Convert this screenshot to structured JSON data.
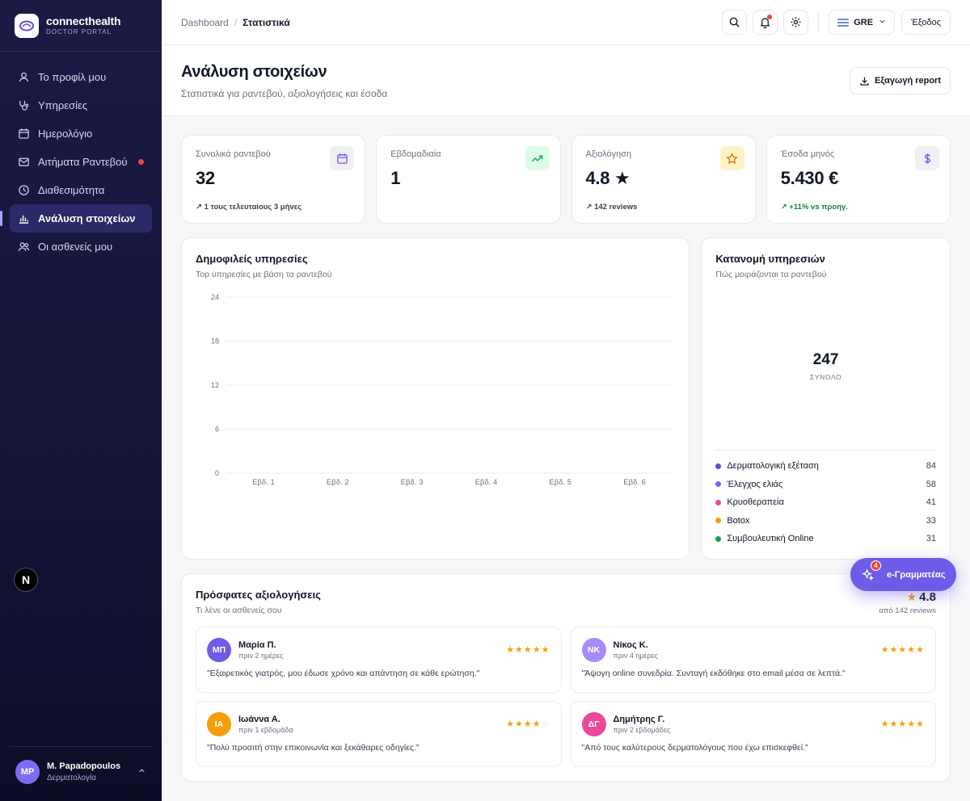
{
  "brand": {
    "name": "connecthealth",
    "subtitle": "DOCTOR PORTAL"
  },
  "sidebar": {
    "items": [
      {
        "label": "Το προφίλ μου",
        "icon": "user-icon"
      },
      {
        "label": "Υπηρεσίες",
        "icon": "stethoscope-icon"
      },
      {
        "label": "Ημερολόγιο",
        "icon": "calendar-icon"
      },
      {
        "label": "Αιτήματα Ραντεβού",
        "icon": "mail-icon"
      },
      {
        "label": "Διαθεσιμότητα",
        "icon": "clock-icon"
      },
      {
        "label": "Ανάλυση στοιχείων",
        "icon": "bar-chart-icon",
        "active": true
      },
      {
        "label": "Οι ασθενείς μου",
        "icon": "users-icon"
      }
    ],
    "next_badge": "N",
    "user": {
      "initials": "MP",
      "name": "M. Papadopoulos",
      "role": "Δερματολογία"
    }
  },
  "topbar": {
    "breadcrumb": {
      "root": "Dashboard",
      "separator": "/",
      "current": "Στατιστικά"
    },
    "language": "GRE",
    "logout": "Έξοδος"
  },
  "header": {
    "title": "Ανάλυση στοιχείων",
    "subtitle": "Στατιστικά για ραντεβού, αξιολογήσεις και έσοδα",
    "export_label": "Εξαγωγή report"
  },
  "stats": [
    {
      "label": "Συνολικά ραντεβού",
      "value": "32",
      "note": "1 τους τελευταίους 3 μήνες",
      "icon": "calendar-icon",
      "icon_bg": "#eef0f6",
      "icon_color": "#6d5ce8"
    },
    {
      "label": "Εβδομαδιαία",
      "value": "1",
      "note": "",
      "icon": "trending-up-icon",
      "icon_bg": "#dcfce7",
      "icon_color": "#16a34a"
    },
    {
      "label": "Αξιολόγηση",
      "value": "4.8 ★",
      "note": "142 reviews",
      "icon": "star-icon",
      "icon_bg": "#fef3c7",
      "icon_color": "#d97706"
    },
    {
      "label": "Έσοδα μηνός",
      "value": "5.430 €",
      "note": "+11% vs προηγ.",
      "icon": "dollar-icon",
      "icon_bg": "#eef0f6",
      "icon_color": "#6d5ce8"
    }
  ],
  "popular": {
    "title": "Δημοφιλείς υπηρεσίες",
    "subtitle": "Top υπηρεσίες με βάση τα ραντεβού"
  },
  "distribution": {
    "title": "Κατανομή υπηρεσιών",
    "subtitle": "Πώς μοιράζονται τα ραντεβού",
    "total": "247",
    "total_label": "ΣΥΝΟΛΟ",
    "items": [
      {
        "label": "Δερματολογική εξέταση",
        "value": "84",
        "color": "#5b4fd6"
      },
      {
        "label": "Έλεγχος ελιάς",
        "value": "58",
        "color": "#8b5cf6"
      },
      {
        "label": "Κρυοθεραπεία",
        "value": "41",
        "color": "#ec4899"
      },
      {
        "label": "Botox",
        "value": "33",
        "color": "#f59e0b"
      },
      {
        "label": "Συμβουλευτική Online",
        "value": "31",
        "color": "#16a34a"
      }
    ]
  },
  "chart_data": {
    "type": "bar",
    "title": "Δημοφιλείς υπηρεσίες",
    "categories": [
      "Εβδ. 1",
      "Εβδ. 2",
      "Εβδ. 3",
      "Εβδ. 4",
      "Εβδ. 5",
      "Εβδ. 6"
    ],
    "values": [
      0,
      0,
      0,
      0,
      0,
      0
    ],
    "yticks": [
      "0",
      "6",
      "12",
      "18",
      "24"
    ],
    "ylim": [
      0,
      24
    ],
    "grid": true,
    "xlabel": "",
    "ylabel": ""
  },
  "reviews": {
    "title": "Πρόσφατες αξιολογήσεις",
    "subtitle": "Τι λένε οι ασθενείς σου",
    "score": "4.8",
    "score_sub": "από 142 reviews",
    "items": [
      {
        "initials": "ΜΠ",
        "name": "Μαρία Π.",
        "time": "πριν 2 ημέρες",
        "stars": 5,
        "text": "\"Εξαιρετικός γιατρός, μου έδωσε χρόνο και απάντηση σε κάθε ερώτηση.\"",
        "color": "#6d5ce8"
      },
      {
        "initials": "ΝΚ",
        "name": "Νίκος Κ.",
        "time": "πριν 4 ημέρες",
        "stars": 5,
        "text": "\"Άψογη online συνεδρία. Συνταγή εκδόθηκε στο email μέσα σε λεπτά.\"",
        "color": "#a78bfa"
      },
      {
        "initials": "ΙΑ",
        "name": "Ιωάννα Α.",
        "time": "πριν 1 εβδομάδα",
        "stars": 4,
        "text": "\"Πολύ προσιτή στην επικοινωνία και ξεκάθαρες οδηγίες.\"",
        "color": "#f59e0b"
      },
      {
        "initials": "ΔΓ",
        "name": "Δημήτρης Γ.",
        "time": "πριν 2 εβδομάδες",
        "stars": 5,
        "text": "\"Από τους καλύτερους δερματολόγους που έχω επισκεφθεί.\"",
        "color": "#ec4899"
      }
    ]
  },
  "assistant": {
    "label": "e-Γραμματέας",
    "badge": "4"
  }
}
